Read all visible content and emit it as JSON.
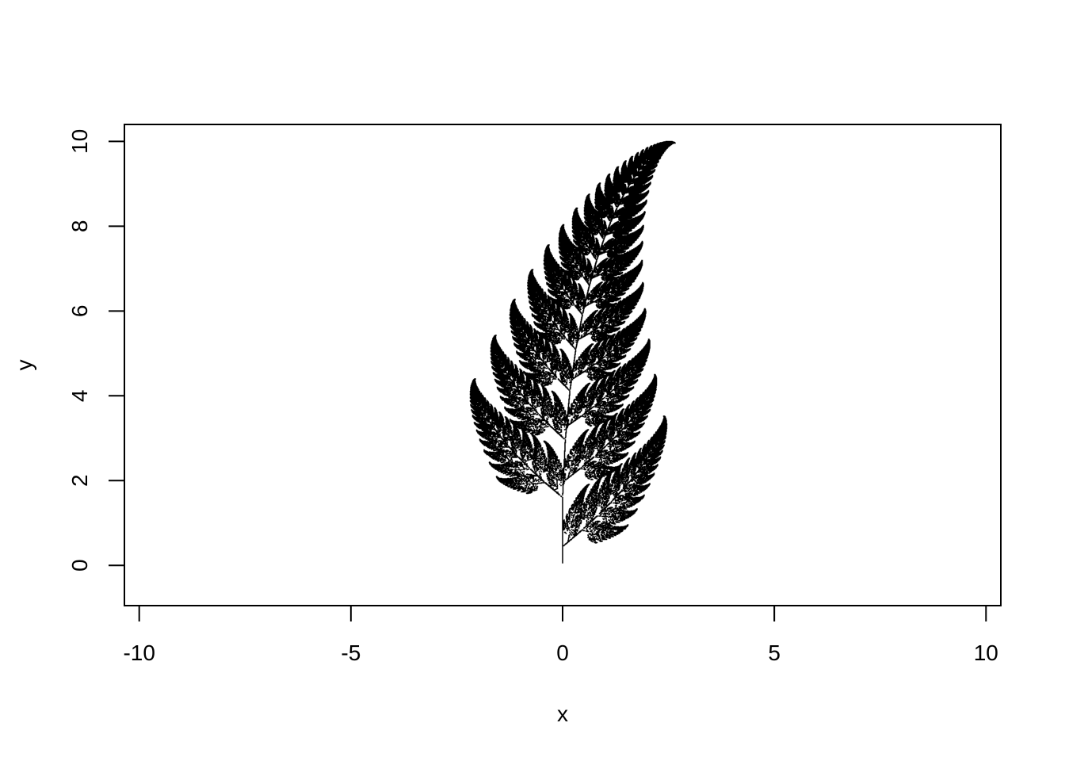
{
  "chart_data": {
    "type": "scatter",
    "title": "",
    "xlabel": "x",
    "ylabel": "y",
    "xlim": [
      -10.35,
      10.35
    ],
    "ylim": [
      -0.95,
      10.4
    ],
    "xticks": [
      -10,
      -5,
      0,
      5,
      10
    ],
    "yticks": [
      0,
      2,
      4,
      6,
      8,
      10
    ],
    "xtick_labels": [
      "-10",
      "-5",
      "0",
      "5",
      "10"
    ],
    "ytick_labels": [
      "0",
      "2",
      "4",
      "6",
      "8",
      "10"
    ],
    "grid": false,
    "legend": "none",
    "series": [
      {
        "generator": "barnsley-fern IFS",
        "points": 200000,
        "color": "#000000",
        "x_range": [
          -1.55,
          2.65
        ],
        "y_range": [
          0,
          9.98
        ]
      }
    ]
  }
}
